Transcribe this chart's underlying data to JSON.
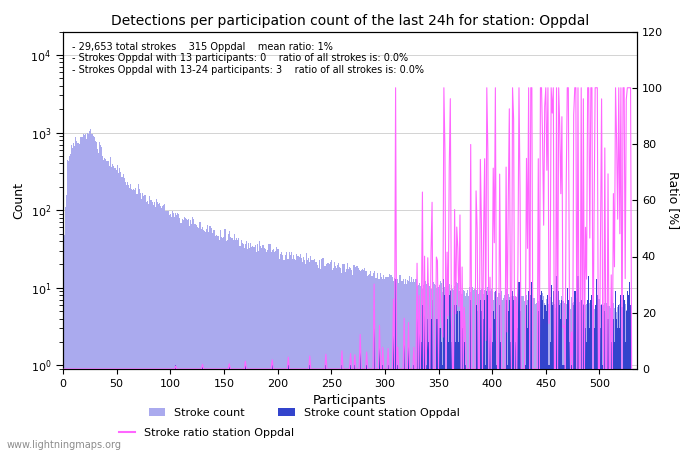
{
  "title": "Detections per participation count of the last 24h for station: Oppdal",
  "xlabel": "Participants",
  "ylabel_left": "Count",
  "ylabel_right": "Ratio [%]",
  "annotation_lines": [
    "29,653 total strokes    315 Oppdal    mean ratio: 1%",
    "Strokes Oppdal with 13 participants: 0    ratio of all strokes is: 0.0%",
    "Strokes Oppdal with 13-24 participants: 3    ratio of all strokes is: 0.0%"
  ],
  "legend_entries": [
    "Stroke count",
    "Stroke count station Oppdal",
    "Stroke ratio station Oppdal"
  ],
  "bar_color_main": "#aaaaee",
  "bar_color_station": "#3344cc",
  "line_color_ratio": "#ff66ff",
  "watermark": "www.lightningmaps.org",
  "xlim": [
    0,
    535
  ],
  "ylim_ratio": [
    0,
    120
  ],
  "x_max": 530
}
